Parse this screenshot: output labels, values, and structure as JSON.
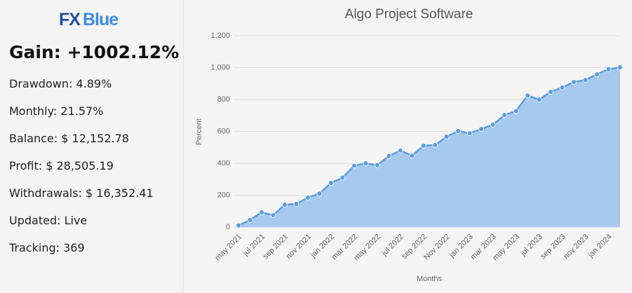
{
  "panel": {
    "logo": {
      "fx": "FX",
      "blue": "Blue"
    },
    "gain": "Gain: +1002.12%",
    "stats": [
      "Drawdown: 4.89%",
      "Monthly: 21.57%",
      "Balance: $ 12,152.78",
      "Profit: $ 28,505.19",
      "Withdrawals: $ 16,352.41",
      "Updated: Live",
      "Tracking: 369"
    ]
  },
  "chart_data": {
    "type": "area",
    "title": "Algo Project Software",
    "y_label": "Percent",
    "x_label": "Months",
    "categories": [
      "may 2021",
      null,
      "jul 2021",
      null,
      "sep 2021",
      null,
      "nov 2021",
      null,
      "jan 2022",
      null,
      "mar 2022",
      null,
      "may 2022",
      null,
      "jul 2022",
      null,
      "sep 2022",
      null,
      "Nov 2022",
      null,
      "jan 2023",
      null,
      "mar 2023",
      null,
      "may 2023",
      null,
      "jul 2023",
      null,
      "sep 2023",
      null,
      "nov 2023",
      null,
      "jan 2024",
      null
    ],
    "values": [
      10,
      45,
      92,
      75,
      140,
      145,
      185,
      210,
      277,
      310,
      385,
      400,
      388,
      445,
      480,
      448,
      510,
      515,
      567,
      602,
      588,
      615,
      642,
      703,
      728,
      825,
      800,
      848,
      875,
      910,
      922,
      958,
      990,
      1002
    ],
    "color": "#5b9de0",
    "area_color": "#a8c9ef",
    "ylim": [
      0,
      1200
    ],
    "yticks": [
      0,
      200,
      400,
      600,
      800,
      {
        "value": 1000,
        "label": "1,000"
      },
      {
        "value": 1200,
        "label": "1,200"
      }
    ],
    "grid": true
  }
}
